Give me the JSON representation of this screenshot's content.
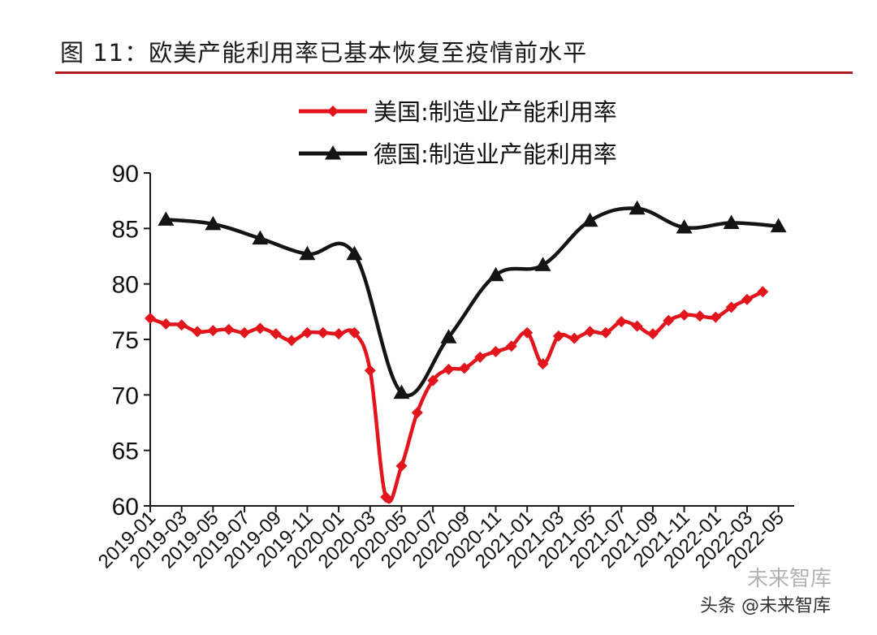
{
  "figure": {
    "title": "图 11：欧美产能利用率已基本恢复至疫情前水平"
  },
  "watermark": {
    "text": "头条 @未来智库",
    "faint_text": "未来智库"
  },
  "colors": {
    "us_series": "#e2141c",
    "de_series": "#141414",
    "title_rule": "#b01c22",
    "axis": "#1a1a1a"
  },
  "chart_data": {
    "type": "line",
    "title": "",
    "xlabel": "",
    "ylabel": "",
    "ylim": [
      60,
      90
    ],
    "yticks": [
      60,
      65,
      70,
      75,
      80,
      85,
      90
    ],
    "grid": false,
    "legend_position": "top-center",
    "x_tick_labels": [
      "2019-01",
      "2019-03",
      "2019-05",
      "2019-07",
      "2019-09",
      "2019-11",
      "2020-01",
      "2020-03",
      "2020-05",
      "2020-07",
      "2020-09",
      "2020-11",
      "2021-01",
      "2021-03",
      "2021-05",
      "2021-07",
      "2021-09",
      "2021-11",
      "2022-01",
      "2022-03",
      "2022-05"
    ],
    "series": [
      {
        "name": "美国:制造业产能利用率",
        "color": "#e2141c",
        "marker": "diamond",
        "frequency": "monthly",
        "x": [
          "2019-01",
          "2019-02",
          "2019-03",
          "2019-04",
          "2019-05",
          "2019-06",
          "2019-07",
          "2019-08",
          "2019-09",
          "2019-10",
          "2019-11",
          "2019-12",
          "2020-01",
          "2020-02",
          "2020-03",
          "2020-04",
          "2020-05",
          "2020-06",
          "2020-07",
          "2020-08",
          "2020-09",
          "2020-10",
          "2020-11",
          "2020-12",
          "2021-01",
          "2021-02",
          "2021-03",
          "2021-04",
          "2021-05",
          "2021-06",
          "2021-07",
          "2021-08",
          "2021-09",
          "2021-10",
          "2021-11",
          "2021-12",
          "2022-01",
          "2022-02",
          "2022-03",
          "2022-04"
        ],
        "values": [
          76.9,
          76.4,
          76.3,
          75.7,
          75.8,
          75.9,
          75.6,
          76.0,
          75.5,
          74.9,
          75.6,
          75.6,
          75.5,
          75.6,
          72.2,
          60.8,
          63.6,
          68.4,
          71.3,
          72.3,
          72.4,
          73.4,
          73.9,
          74.4,
          75.6,
          72.8,
          75.3,
          75.1,
          75.7,
          75.6,
          76.6,
          76.2,
          75.5,
          76.7,
          77.2,
          77.1,
          77.0,
          77.9,
          78.6,
          79.3
        ]
      },
      {
        "name": "德国:制造业产能利用率",
        "color": "#141414",
        "marker": "triangle",
        "frequency": "quarterly",
        "x": [
          "2019-02",
          "2019-05",
          "2019-08",
          "2019-11",
          "2020-02",
          "2020-05",
          "2020-08",
          "2020-11",
          "2021-02",
          "2021-05",
          "2021-08",
          "2021-11",
          "2022-02",
          "2022-05"
        ],
        "values": [
          85.8,
          85.4,
          84.1,
          82.7,
          82.7,
          70.2,
          75.2,
          80.8,
          81.7,
          85.7,
          86.8,
          85.1,
          85.5,
          85.2
        ]
      }
    ]
  }
}
